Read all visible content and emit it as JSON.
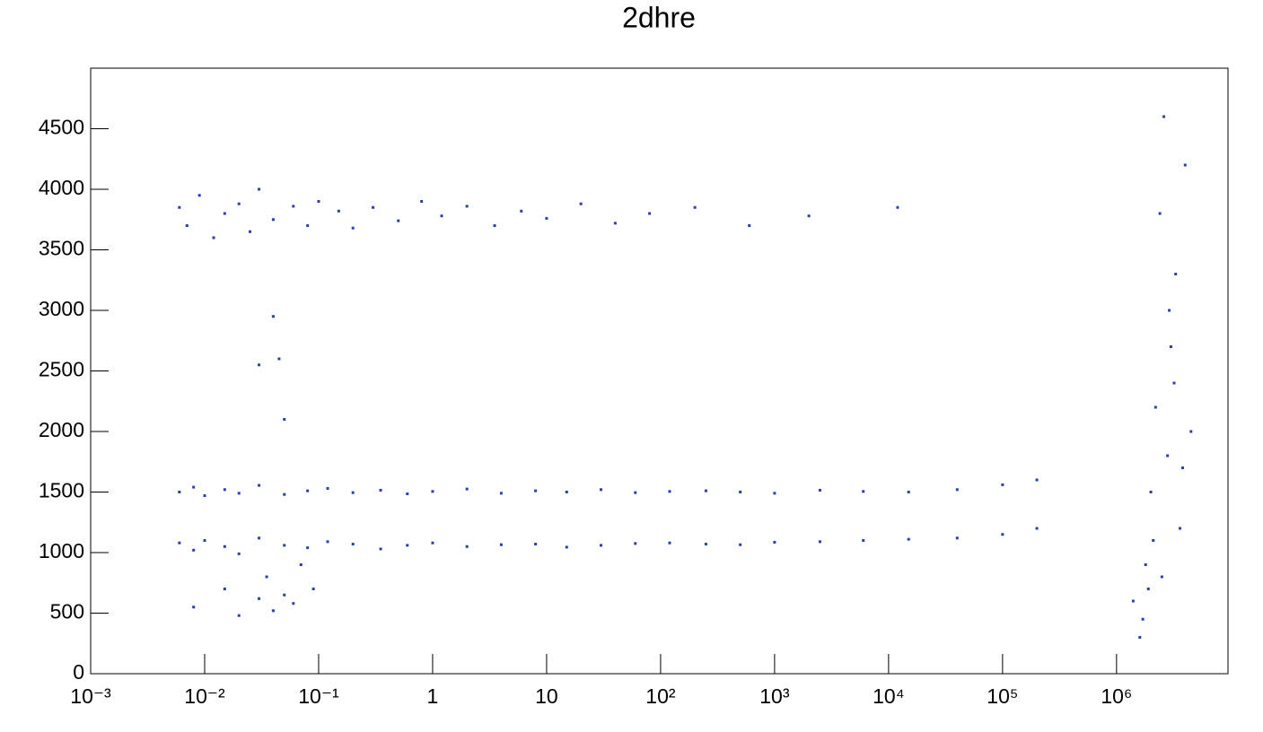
{
  "chart_data": {
    "type": "scatter",
    "title": "2dhre",
    "xlog": true,
    "xlim": [
      0.001,
      9500000
    ],
    "ylim": [
      0,
      5000
    ],
    "xticks": [
      {
        "value": 0.001,
        "label": "10⁻³"
      },
      {
        "value": 0.01,
        "label": "10⁻²"
      },
      {
        "value": 0.1,
        "label": "10⁻¹"
      },
      1,
      10,
      {
        "value": 100,
        "label": "10²"
      },
      {
        "value": 1000,
        "label": "10³"
      },
      {
        "value": 10000,
        "label": "10⁴"
      },
      {
        "value": 100000,
        "label": "10⁵"
      },
      {
        "value": 1000000,
        "label": "10⁶"
      }
    ],
    "yticks": [
      0,
      500,
      1000,
      1500,
      2000,
      2500,
      3000,
      3500,
      4000,
      4500
    ],
    "series": [
      {
        "color": "#2b3fa6",
        "x": [
          0.006,
          0.008,
          0.01,
          0.015,
          0.02,
          0.03,
          0.05,
          0.08,
          0.12,
          0.2,
          0.35,
          0.6,
          1,
          2,
          4,
          8,
          15,
          30,
          60,
          120,
          250,
          500,
          1000,
          2500,
          6000,
          15000,
          40000,
          100000,
          200000,
          0.006,
          0.008,
          0.01,
          0.015,
          0.02,
          0.03,
          0.05,
          0.08,
          0.12,
          0.2,
          0.35,
          0.6,
          1,
          2,
          4,
          8,
          15,
          30,
          60,
          120,
          250,
          500,
          1000,
          2500,
          6000,
          15000,
          40000,
          100000,
          200000,
          0.006,
          0.007,
          0.009,
          0.012,
          0.015,
          0.02,
          0.025,
          0.03,
          0.04,
          0.06,
          0.08,
          0.1,
          0.15,
          0.2,
          0.3,
          0.5,
          0.8,
          1.2,
          2,
          3.5,
          6,
          10,
          20,
          40,
          80,
          200,
          600,
          2000,
          12000,
          0.008,
          0.015,
          0.02,
          0.03,
          0.035,
          0.04,
          0.05,
          0.06,
          0.07,
          0.09,
          0.03,
          0.04,
          0.05,
          0.045,
          1400000,
          1600000,
          1800000,
          2000000,
          2200000,
          2500000,
          2800000,
          3000000,
          3300000,
          3600000,
          4000000,
          1700000,
          2400000,
          3200000,
          2100000,
          2900000,
          3800000,
          1900000,
          2600000,
          4500000
        ],
        "values": [
          1500,
          1540,
          1470,
          1520,
          1490,
          1555,
          1480,
          1510,
          1530,
          1495,
          1515,
          1485,
          1505,
          1525,
          1490,
          1510,
          1500,
          1520,
          1495,
          1505,
          1510,
          1500,
          1490,
          1515,
          1505,
          1500,
          1520,
          1560,
          1600,
          1080,
          1020,
          1100,
          1050,
          990,
          1120,
          1060,
          1040,
          1090,
          1070,
          1030,
          1060,
          1080,
          1050,
          1065,
          1070,
          1045,
          1060,
          1075,
          1080,
          1070,
          1065,
          1085,
          1090,
          1100,
          1110,
          1120,
          1150,
          1200,
          3850,
          3700,
          3950,
          3600,
          3800,
          3880,
          3650,
          4000,
          3750,
          3860,
          3700,
          3900,
          3820,
          3680,
          3850,
          3740,
          3900,
          3780,
          3860,
          3700,
          3820,
          3760,
          3880,
          3720,
          3800,
          3850,
          3700,
          3780,
          3850,
          550,
          700,
          480,
          620,
          800,
          520,
          650,
          580,
          900,
          700,
          2550,
          2950,
          2100,
          2600,
          600,
          300,
          900,
          1500,
          2200,
          800,
          1800,
          2700,
          3300,
          1200,
          4200,
          450,
          3800,
          2400,
          1100,
          3000,
          1700,
          700,
          4600,
          2000
        ]
      }
    ]
  }
}
